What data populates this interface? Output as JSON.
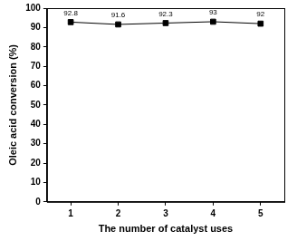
{
  "chart_data": {
    "type": "line",
    "x_label": "The number of catalyst uses",
    "y_label": "Oleic acid conversion (%)",
    "categories": [
      "1",
      "2",
      "3",
      "4",
      "5"
    ],
    "values": [
      92.8,
      91.6,
      92.3,
      93,
      92
    ],
    "color": "#000000",
    "marker": "square",
    "line_style": "solid",
    "ylim": [
      0,
      100
    ],
    "yticks": [
      0,
      10,
      20,
      30,
      40,
      50,
      60,
      70,
      80,
      90,
      100
    ],
    "grid": false,
    "data_labels": true
  }
}
